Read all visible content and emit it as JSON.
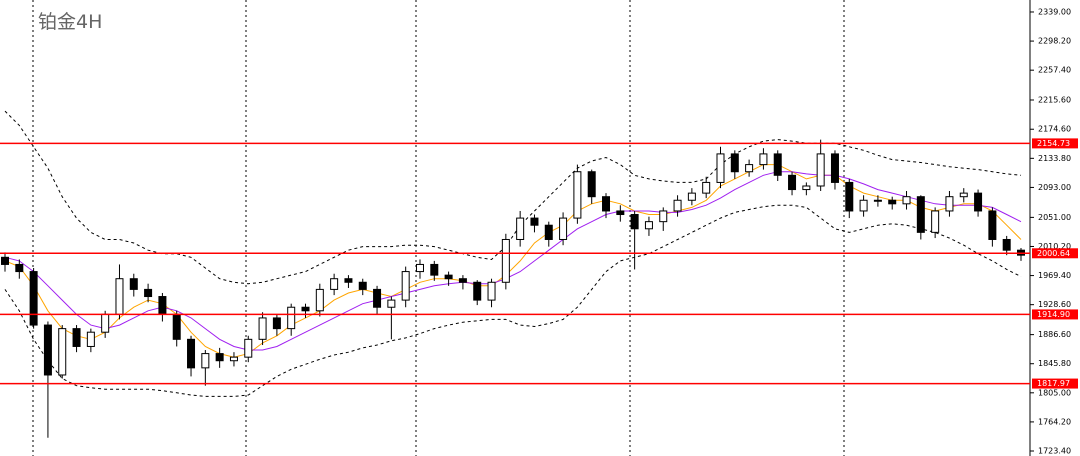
{
  "chart_data": {
    "type": "candlestick",
    "title": "铂金4H",
    "open": [
      1995,
      1985,
      1975,
      1900,
      1830,
      1895,
      1870,
      1890,
      1915,
      1965,
      1950,
      1940,
      1915,
      1880,
      1840,
      1860,
      1850,
      1855,
      1880,
      1910,
      1895,
      1925,
      1920,
      1950,
      1965,
      1960,
      1950,
      1925,
      1935,
      1975,
      1985,
      1970,
      1965,
      1960,
      1935,
      1960,
      2020,
      2050,
      2040,
      2020,
      2050,
      2115,
      2080,
      2060,
      2055,
      2035,
      2045,
      2060,
      2075,
      2085,
      2100,
      2140,
      2115,
      2125,
      2140,
      2110,
      2090,
      2095,
      2140,
      2100,
      2060,
      2075,
      2075,
      2070,
      2080,
      2030,
      2060,
      2080,
      2085,
      2060,
      2020,
      2005
    ],
    "high": [
      2002,
      1992,
      1980,
      1905,
      1900,
      1900,
      1895,
      1920,
      1985,
      1972,
      1958,
      1945,
      1920,
      1885,
      1865,
      1868,
      1862,
      1885,
      1918,
      1915,
      1930,
      1930,
      1958,
      1972,
      1970,
      1965,
      1955,
      1940,
      1982,
      1992,
      1990,
      1975,
      1970,
      1963,
      1965,
      2028,
      2060,
      2055,
      2045,
      2058,
      2125,
      2118,
      2085,
      2068,
      2060,
      2052,
      2065,
      2082,
      2092,
      2108,
      2150,
      2145,
      2132,
      2148,
      2145,
      2115,
      2100,
      2160,
      2145,
      2105,
      2082,
      2082,
      2080,
      2088,
      2082,
      2065,
      2088,
      2092,
      2090,
      2065,
      2025,
      2008
    ],
    "low": [
      1975,
      1965,
      1895,
      1742,
      1825,
      1862,
      1862,
      1882,
      1908,
      1940,
      1932,
      1905,
      1870,
      1828,
      1815,
      1840,
      1842,
      1848,
      1872,
      1885,
      1885,
      1910,
      1912,
      1942,
      1952,
      1942,
      1915,
      1880,
      1925,
      1965,
      1962,
      1955,
      1950,
      1928,
      1925,
      1950,
      2010,
      2030,
      2010,
      2012,
      2042,
      2070,
      2050,
      2045,
      1978,
      2025,
      2032,
      2052,
      2068,
      2078,
      2092,
      2105,
      2108,
      2118,
      2102,
      2082,
      2082,
      2088,
      2090,
      2050,
      2052,
      2066,
      2062,
      2062,
      2020,
      2022,
      2052,
      2072,
      2052,
      2010,
      1998,
      1990
    ],
    "close": [
      1985,
      1975,
      1900,
      1830,
      1895,
      1870,
      1890,
      1915,
      1965,
      1950,
      1940,
      1915,
      1880,
      1840,
      1860,
      1850,
      1855,
      1880,
      1910,
      1895,
      1925,
      1920,
      1950,
      1965,
      1960,
      1950,
      1925,
      1935,
      1975,
      1985,
      1970,
      1965,
      1960,
      1935,
      1960,
      2020,
      2050,
      2040,
      2020,
      2050,
      2115,
      2080,
      2060,
      2055,
      2035,
      2045,
      2060,
      2075,
      2085,
      2100,
      2140,
      2115,
      2125,
      2140,
      2110,
      2090,
      2095,
      2140,
      2100,
      2060,
      2075,
      2075,
      2070,
      2080,
      2030,
      2060,
      2080,
      2085,
      2060,
      2020,
      2005,
      1998
    ],
    "lines": [
      {
        "color": "#ffa500",
        "style": "solid",
        "values": [
          1990,
          1982,
          1955,
          1920,
          1895,
          1885,
          1880,
          1890,
          1910,
          1925,
          1935,
          1930,
          1915,
          1890,
          1870,
          1860,
          1855,
          1860,
          1875,
          1885,
          1900,
          1910,
          1920,
          1935,
          1945,
          1950,
          1945,
          1940,
          1950,
          1960,
          1965,
          1965,
          1962,
          1955,
          1955,
          1970,
          1990,
          2015,
          2030,
          2040,
          2060,
          2070,
          2075,
          2070,
          2060,
          2055,
          2055,
          2060,
          2065,
          2075,
          2095,
          2105,
          2115,
          2125,
          2125,
          2115,
          2105,
          2110,
          2110,
          2095,
          2085,
          2080,
          2075,
          2075,
          2065,
          2060,
          2065,
          2070,
          2070,
          2060,
          2040,
          2020
        ]
      },
      {
        "color": "#a020f0",
        "style": "solid",
        "values": [
          1995,
          1990,
          1975,
          1955,
          1935,
          1915,
          1900,
          1895,
          1900,
          1910,
          1920,
          1925,
          1920,
          1910,
          1895,
          1880,
          1870,
          1865,
          1865,
          1870,
          1880,
          1890,
          1900,
          1910,
          1920,
          1930,
          1935,
          1940,
          1945,
          1950,
          1955,
          1958,
          1960,
          1958,
          1958,
          1965,
          1975,
          1990,
          2005,
          2020,
          2035,
          2045,
          2055,
          2060,
          2060,
          2060,
          2058,
          2058,
          2062,
          2068,
          2078,
          2090,
          2100,
          2110,
          2115,
          2115,
          2112,
          2110,
          2110,
          2105,
          2098,
          2090,
          2085,
          2080,
          2075,
          2070,
          2068,
          2068,
          2068,
          2065,
          2055,
          2045
        ]
      },
      {
        "color": "#000000",
        "style": "dashed",
        "values": [
          2200,
          2180,
          2150,
          2120,
          2080,
          2050,
          2030,
          2020,
          2020,
          2015,
          2005,
          2000,
          2000,
          1995,
          1980,
          1965,
          1960,
          1958,
          1960,
          1965,
          1970,
          1975,
          1985,
          1995,
          2005,
          2010,
          2010,
          2010,
          2012,
          2012,
          2010,
          2005,
          2000,
          1995,
          1992,
          2010,
          2040,
          2060,
          2080,
          2100,
          2120,
          2130,
          2135,
          2125,
          2110,
          2105,
          2102,
          2100,
          2100,
          2105,
          2125,
          2140,
          2150,
          2158,
          2160,
          2158,
          2155,
          2155,
          2155,
          2150,
          2145,
          2138,
          2132,
          2130,
          2128,
          2125,
          2122,
          2120,
          2118,
          2115,
          2112,
          2110
        ]
      },
      {
        "color": "#000000",
        "style": "dashed",
        "values": [
          1950,
          1920,
          1880,
          1850,
          1825,
          1815,
          1812,
          1810,
          1810,
          1810,
          1810,
          1808,
          1805,
          1802,
          1800,
          1800,
          1800,
          1802,
          1815,
          1828,
          1838,
          1845,
          1852,
          1858,
          1862,
          1868,
          1872,
          1878,
          1882,
          1888,
          1895,
          1900,
          1904,
          1906,
          1908,
          1908,
          1900,
          1898,
          1902,
          1908,
          1925,
          1950,
          1975,
          1990,
          1995,
          2000,
          2010,
          2020,
          2030,
          2040,
          2050,
          2058,
          2062,
          2066,
          2068,
          2068,
          2065,
          2050,
          2035,
          2030,
          2035,
          2040,
          2042,
          2040,
          2035,
          2030,
          2022,
          2012,
          2000,
          1990,
          1978,
          1968
        ]
      }
    ],
    "levels": [
      2154.73,
      2000.64,
      {
        "value": 1914.9,
        "label": "1914.90"
      },
      1817.97
    ],
    "level_color": "#ff0000",
    "ylim": [
      1716.4,
      2355.8
    ],
    "yticks": [
      {
        "value": 2339.0,
        "label": "2339.00"
      },
      {
        "value": 2298.2,
        "label": "2298.20"
      },
      {
        "value": 2257.4,
        "label": "2257.40"
      },
      {
        "value": 2215.6,
        "label": "2215.60"
      },
      {
        "value": 2174.6,
        "label": "2174.60"
      },
      {
        "value": 2133.8,
        "label": "2133.80"
      },
      {
        "value": 2093.0,
        "label": "2093.00"
      },
      {
        "value": 2051.0,
        "label": "2051.00"
      },
      {
        "value": 2010.2,
        "label": "2010.20"
      },
      {
        "value": 1969.4,
        "label": "1969.40"
      },
      {
        "value": 1928.6,
        "label": "1928.60"
      },
      {
        "value": 1886.6,
        "label": "1886.60"
      },
      {
        "value": 1845.8,
        "label": "1845.80"
      },
      {
        "value": 1805.0,
        "label": "1805.00"
      },
      {
        "value": 1764.2,
        "label": "1764.20"
      },
      {
        "value": 1723.4,
        "label": "1723.40"
      }
    ]
  }
}
